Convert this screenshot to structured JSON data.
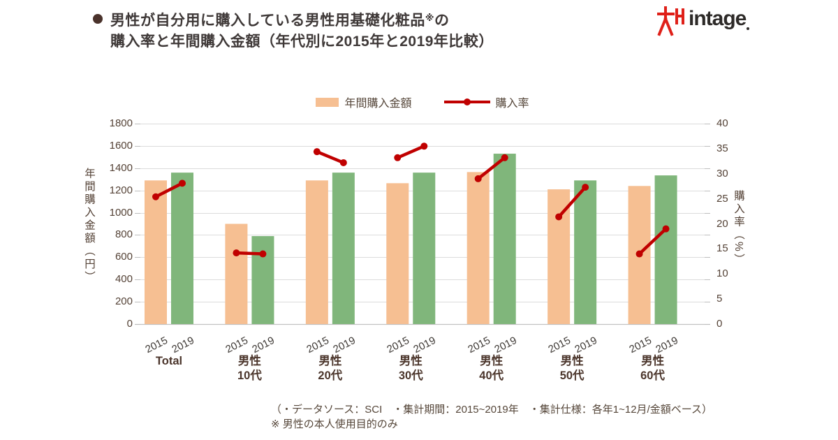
{
  "header": {
    "bullet": "●",
    "title_line1_main": "男性が自分用に購入している男性用基礎化粧品",
    "title_line1_sup": "※",
    "title_line1_tail": "の",
    "title_line2": "購入率と年間購入金額（年代別に2015年と2019年比較）"
  },
  "logo": {
    "text": "intage"
  },
  "legend": {
    "bars_label": "年間購入金額",
    "line_label": "購入率"
  },
  "chart_data": {
    "type": "bar+line",
    "categories": [
      [
        "Total"
      ],
      [
        "男性",
        "10代"
      ],
      [
        "男性",
        "20代"
      ],
      [
        "男性",
        "30代"
      ],
      [
        "男性",
        "40代"
      ],
      [
        "男性",
        "50代"
      ],
      [
        "男性",
        "60代"
      ]
    ],
    "year_labels": [
      "2015",
      "2019"
    ],
    "series": [
      {
        "name": "年間購入金額 2015",
        "type": "bar",
        "axis": "left",
        "color": "#f6bf92",
        "values": [
          1290,
          900,
          1290,
          1265,
          1365,
          1210,
          1240
        ]
      },
      {
        "name": "年間購入金額 2019",
        "type": "bar",
        "axis": "left",
        "color": "#80b67b",
        "values": [
          1360,
          790,
          1360,
          1360,
          1530,
          1290,
          1335
        ]
      },
      {
        "name": "購入率 2015",
        "type": "line",
        "axis": "right",
        "color": "#c00000",
        "values": [
          25.4,
          14.2,
          34.4,
          33.2,
          29.0,
          21.4,
          14.0
        ]
      },
      {
        "name": "購入率 2019",
        "type": "line",
        "axis": "right",
        "color": "#c00000",
        "values": [
          28.1,
          14.0,
          32.2,
          35.5,
          33.2,
          27.3,
          19.0
        ]
      }
    ],
    "y_left": {
      "label": "年間購入金額（円）",
      "min": 0,
      "max": 1800,
      "step": 200,
      "ticks": [
        0,
        200,
        400,
        600,
        800,
        1000,
        1200,
        1400,
        1600,
        1800
      ]
    },
    "y_right": {
      "label": "購入率（%）",
      "min": 0,
      "max": 40,
      "step": 5,
      "ticks": [
        0,
        5,
        10,
        15,
        20,
        25,
        30,
        35,
        40
      ]
    },
    "grid": true,
    "legend_position": "top",
    "colors": {
      "grid": "#dbdbdb",
      "baseline": "#c2c2c2",
      "tick": "#bdbdbd"
    }
  },
  "footer": {
    "line1": "（・データソース：SCI　・集計期間：2015~2019年　・集計仕様：各年1~12月/金額ベース）",
    "line2": "※ 男性の本人使用目的のみ"
  }
}
